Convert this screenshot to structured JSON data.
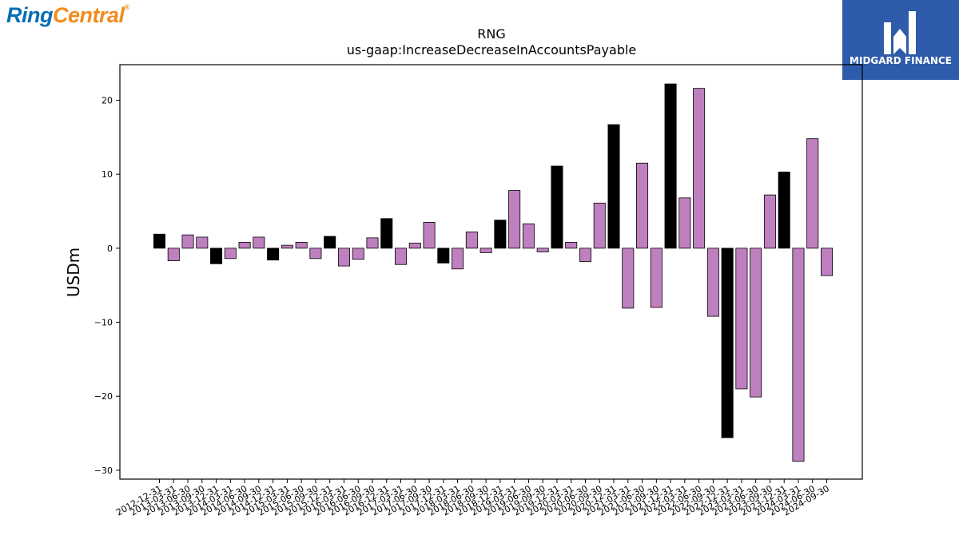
{
  "logos": {
    "left": {
      "part1": "Ring",
      "part2": "Central",
      "mark": "®"
    },
    "right": {
      "text": "MIDGARD FINANCE"
    }
  },
  "chart_data": {
    "type": "bar",
    "title": "RNG",
    "subtitle": "us-gaap:IncreaseDecreaseInAccountsPayable",
    "xlabel": "",
    "ylabel": "USDm",
    "ylim": [
      -31.2,
      24.8
    ],
    "yticks": [
      -30,
      -20,
      -10,
      0,
      10,
      20
    ],
    "grid": false,
    "colors": {
      "q4": "#000000",
      "other": "#bf80bf"
    },
    "categories": [
      "2012-12-31",
      "2013-03-31",
      "2013-06-30",
      "2013-09-30",
      "2013-12-31",
      "2014-03-31",
      "2014-06-30",
      "2014-09-30",
      "2014-12-31",
      "2015-03-31",
      "2015-06-30",
      "2015-09-30",
      "2015-12-31",
      "2016-03-31",
      "2016-06-30",
      "2016-09-30",
      "2016-12-31",
      "2017-03-31",
      "2017-06-30",
      "2017-09-30",
      "2017-12-31",
      "2018-03-31",
      "2018-06-30",
      "2018-09-30",
      "2018-12-31",
      "2019-03-31",
      "2019-06-30",
      "2019-09-30",
      "2019-12-31",
      "2020-03-31",
      "2020-06-30",
      "2020-09-30",
      "2020-12-31",
      "2021-03-31",
      "2021-06-30",
      "2021-09-30",
      "2021-12-31",
      "2022-03-31",
      "2022-06-30",
      "2022-09-30",
      "2022-12-31",
      "2023-03-31",
      "2023-06-30",
      "2023-09-30",
      "2023-12-31",
      "2024-03-31",
      "2024-06-30",
      "2024-09-30"
    ],
    "values": [
      1.9,
      -1.7,
      1.8,
      1.5,
      -2.1,
      -1.4,
      0.8,
      1.5,
      -1.6,
      0.4,
      0.8,
      -1.4,
      1.6,
      -2.4,
      -1.5,
      1.4,
      4.0,
      -2.2,
      0.7,
      3.5,
      -2.0,
      -2.8,
      2.2,
      -0.6,
      3.8,
      7.8,
      3.3,
      -0.5,
      11.1,
      0.8,
      -1.8,
      6.1,
      16.7,
      -8.1,
      11.5,
      -8.0,
      22.2,
      6.8,
      21.6,
      -9.2,
      -25.6,
      -19.0,
      -20.1,
      7.2,
      10.3,
      -28.8,
      14.8,
      -3.7
    ]
  }
}
